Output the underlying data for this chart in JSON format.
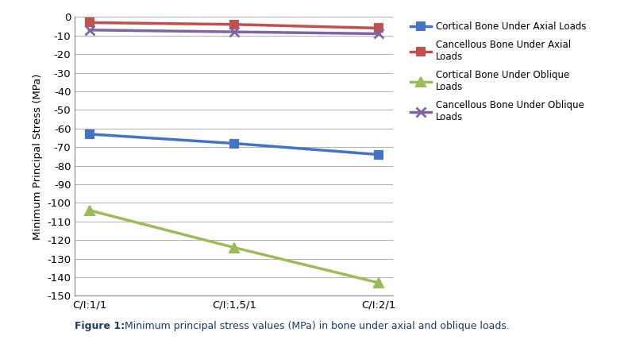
{
  "categories": [
    "C/I:1/1",
    "C/I:1,5/1",
    "C/I:2/1"
  ],
  "series": [
    {
      "label": "Cortical Bone Under Axial Loads",
      "values": [
        -63,
        -68,
        -74
      ],
      "color": "#4472C4",
      "marker": "s",
      "linewidth": 2.5,
      "markersize": 7
    },
    {
      "label": "Cancellous Bone Under Axial\nLoads",
      "values": [
        -3,
        -4,
        -6
      ],
      "color": "#C0504D",
      "marker": "s",
      "linewidth": 2.5,
      "markersize": 7
    },
    {
      "label": "Cortical Bone Under Oblique\nLoads",
      "values": [
        -104,
        -124,
        -143
      ],
      "color": "#9BBB59",
      "marker": "^",
      "linewidth": 2.5,
      "markersize": 8
    },
    {
      "label": "Cancellous Bone Under Oblique\nLoads",
      "values": [
        -7,
        -8,
        -9
      ],
      "color": "#8064A2",
      "marker": "x",
      "linewidth": 2.5,
      "markersize": 8,
      "markeredgewidth": 2
    }
  ],
  "ylabel": "Minimum Principal Stress (MPa)",
  "ylim": [
    -150,
    0
  ],
  "yticks": [
    0,
    -10,
    -20,
    -30,
    -40,
    -50,
    -60,
    -70,
    -80,
    -90,
    -100,
    -110,
    -120,
    -130,
    -140,
    -150
  ],
  "caption_bold": "Figure 1:",
  "caption_normal": " Minimum principal stress values (MPa) in bone under axial and oblique loads.",
  "caption_color": "#1F3864",
  "background_color": "#ffffff",
  "grid_color": "#b0b0b0",
  "figsize": [
    7.86,
    4.28
  ],
  "dpi": 100
}
